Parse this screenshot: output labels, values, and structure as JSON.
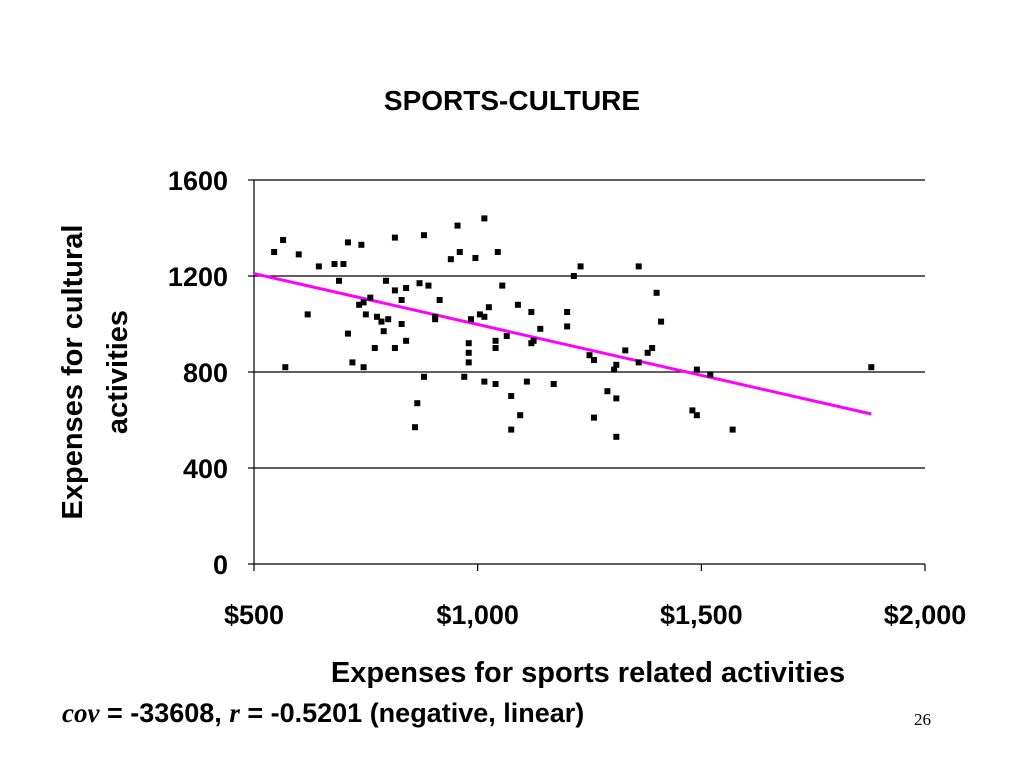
{
  "chart_data": {
    "type": "scatter",
    "title": "SPORTS-CULTURE",
    "xlabel": "Expenses for sports related activities",
    "ylabel": "Expenses for cultural activities",
    "xlim": [
      500,
      2000
    ],
    "ylim": [
      0,
      1600
    ],
    "x_ticks": [
      500,
      1000,
      1500,
      2000
    ],
    "x_tick_labels": [
      "$500",
      "$1,000",
      "$1,500",
      "$2,000"
    ],
    "y_ticks": [
      0,
      400,
      800,
      1200,
      1600
    ],
    "y_tick_labels": [
      "0",
      "400",
      "800",
      "1200",
      "1600"
    ],
    "grid": "horizontal",
    "marker_color": "#000000",
    "trendline_color": "#ff00ff",
    "trendline": {
      "x": [
        500,
        1880
      ],
      "y": [
        1210,
        625
      ]
    },
    "points": [
      [
        545,
        1300
      ],
      [
        565,
        1350
      ],
      [
        600,
        1290
      ],
      [
        645,
        1240
      ],
      [
        680,
        1250
      ],
      [
        700,
        1250
      ],
      [
        710,
        1340
      ],
      [
        740,
        1330
      ],
      [
        690,
        1180
      ],
      [
        735,
        1080
      ],
      [
        745,
        1090
      ],
      [
        760,
        1110
      ],
      [
        775,
        1030
      ],
      [
        785,
        1010
      ],
      [
        795,
        1180
      ],
      [
        815,
        1360
      ],
      [
        815,
        1140
      ],
      [
        830,
        1100
      ],
      [
        840,
        1150
      ],
      [
        870,
        1170
      ],
      [
        890,
        1160
      ],
      [
        880,
        1370
      ],
      [
        915,
        1100
      ],
      [
        940,
        1270
      ],
      [
        955,
        1410
      ],
      [
        960,
        1300
      ],
      [
        995,
        1275
      ],
      [
        1015,
        1440
      ],
      [
        1045,
        1300
      ],
      [
        1055,
        1160
      ],
      [
        620,
        1040
      ],
      [
        710,
        960
      ],
      [
        720,
        840
      ],
      [
        745,
        820
      ],
      [
        770,
        900
      ],
      [
        790,
        970
      ],
      [
        800,
        1020
      ],
      [
        815,
        900
      ],
      [
        830,
        1000
      ],
      [
        840,
        930
      ],
      [
        750,
        1040
      ],
      [
        905,
        1030
      ],
      [
        905,
        1020
      ],
      [
        985,
        1020
      ],
      [
        1005,
        1040
      ],
      [
        1015,
        1030
      ],
      [
        1025,
        1070
      ],
      [
        1040,
        930
      ],
      [
        1040,
        900
      ],
      [
        980,
        920
      ],
      [
        980,
        880
      ],
      [
        980,
        840
      ],
      [
        970,
        780
      ],
      [
        1015,
        760
      ],
      [
        1040,
        750
      ],
      [
        1075,
        700
      ],
      [
        1090,
        1080
      ],
      [
        1110,
        760
      ],
      [
        1120,
        1050
      ],
      [
        1120,
        920
      ],
      [
        1125,
        930
      ],
      [
        1140,
        980
      ],
      [
        1200,
        1050
      ],
      [
        1200,
        990
      ],
      [
        1215,
        1200
      ],
      [
        1230,
        1240
      ],
      [
        1250,
        870
      ],
      [
        1260,
        850
      ],
      [
        1290,
        720
      ],
      [
        1305,
        810
      ],
      [
        1310,
        830
      ],
      [
        1330,
        890
      ],
      [
        1360,
        840
      ],
      [
        1360,
        1240
      ],
      [
        1380,
        880
      ],
      [
        1390,
        900
      ],
      [
        1400,
        1130
      ],
      [
        1410,
        1010
      ],
      [
        1480,
        640
      ],
      [
        1490,
        620
      ],
      [
        1490,
        810
      ],
      [
        1520,
        790
      ],
      [
        1570,
        560
      ],
      [
        1880,
        820
      ],
      [
        570,
        820
      ],
      [
        860,
        570
      ],
      [
        865,
        670
      ],
      [
        880,
        780
      ],
      [
        1075,
        560
      ],
      [
        1095,
        620
      ],
      [
        1170,
        750
      ],
      [
        1260,
        610
      ],
      [
        1310,
        530
      ],
      [
        1310,
        690
      ],
      [
        1065,
        950
      ]
    ]
  },
  "stats": {
    "cov_symbol": "cov",
    "cov_text": " = -33608, ",
    "r_symbol": "r",
    "r_text": " = -0.5201 (negative, linear)"
  },
  "slide": {
    "page_number": "26"
  }
}
